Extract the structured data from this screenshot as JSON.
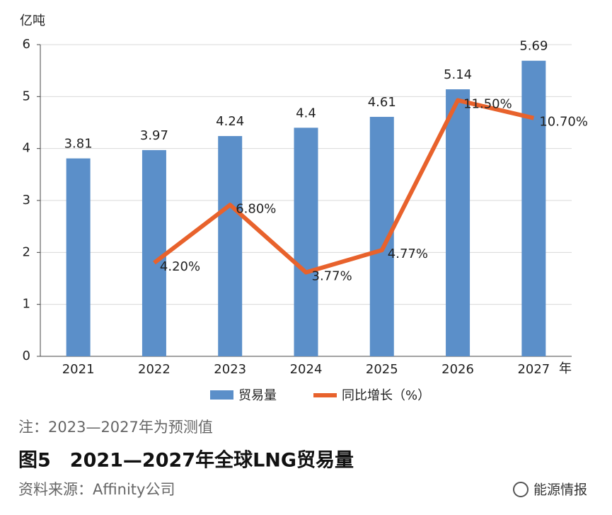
{
  "chart_data": {
    "type": "bar",
    "y_label": "亿吨",
    "x_label": "年",
    "categories": [
      "2021",
      "2022",
      "2023",
      "2024",
      "2025",
      "2026",
      "2027"
    ],
    "series": [
      {
        "name": "贸易量",
        "type": "bar",
        "color": "#5b8fc9",
        "values": [
          3.81,
          3.97,
          4.24,
          4.4,
          4.61,
          5.14,
          5.69
        ]
      },
      {
        "name": "同比增长（%）",
        "type": "line",
        "axis": "y2",
        "color": "#e8622c",
        "values": [
          null,
          4.2,
          6.8,
          3.77,
          4.77,
          11.5,
          10.7
        ],
        "value_labels": [
          null,
          "4.20%",
          "6.80%",
          "3.77%",
          "4.77%",
          "11.50%",
          "10.70%"
        ]
      }
    ],
    "ylim": [
      0,
      6
    ],
    "yticks": [
      0,
      1,
      2,
      3,
      4,
      5,
      6
    ],
    "y2lim": [
      0,
      14
    ],
    "grid": true,
    "note": "注：2023—2027年为预测值",
    "title": "图5　2021—2027年全球LNG贸易量",
    "source": "资料来源：Affinity公司",
    "watermark": "能源情报"
  }
}
